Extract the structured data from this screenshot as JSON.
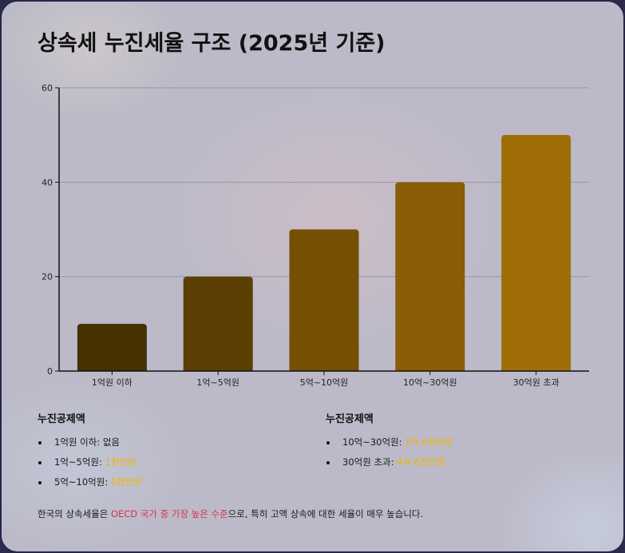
{
  "title": "상속세 누진세율 구조 (2025년 기준)",
  "chart_data": {
    "type": "bar",
    "title": "상속세 누진세율 구조 (2025년 기준)",
    "categories": [
      "1억원 이하",
      "1억~5억원",
      "5억~10억원",
      "10억~30억원",
      "30억원 초과"
    ],
    "values": [
      10,
      20,
      30,
      40,
      50
    ],
    "ylim": [
      0,
      60
    ],
    "yticks": [
      0,
      20,
      40,
      60
    ],
    "xlabel": "",
    "ylabel": "",
    "grid": true,
    "colors": [
      "#463102",
      "#5c3f03",
      "#744f04",
      "#8a5e05",
      "#a06e07"
    ]
  },
  "deductions_left": {
    "title": "누진공제액",
    "items": [
      {
        "label": "1억원 이하: ",
        "value": "없음",
        "highlight": false
      },
      {
        "label": "1억~5억원: ",
        "value": "1천만원",
        "highlight": true
      },
      {
        "label": "5억~10억원: ",
        "value": "6천만원",
        "highlight": true
      }
    ]
  },
  "deductions_right": {
    "title": "누진공제액",
    "items": [
      {
        "label": "10억~30억원: ",
        "value": "1억 6천만원",
        "highlight": true
      },
      {
        "label": "30억원 초과: ",
        "value": "4억 6천만원",
        "highlight": true
      }
    ]
  },
  "footer": {
    "before": "한국의 상속세율은 ",
    "highlight": "OECD 국가 중 가장 높은 수준",
    "after": "으로, 특히 고액 상속에 대한 세율이 매우 높습니다."
  },
  "colors": {
    "highlight": "#f0b400",
    "emphasis": "#d9344a"
  }
}
